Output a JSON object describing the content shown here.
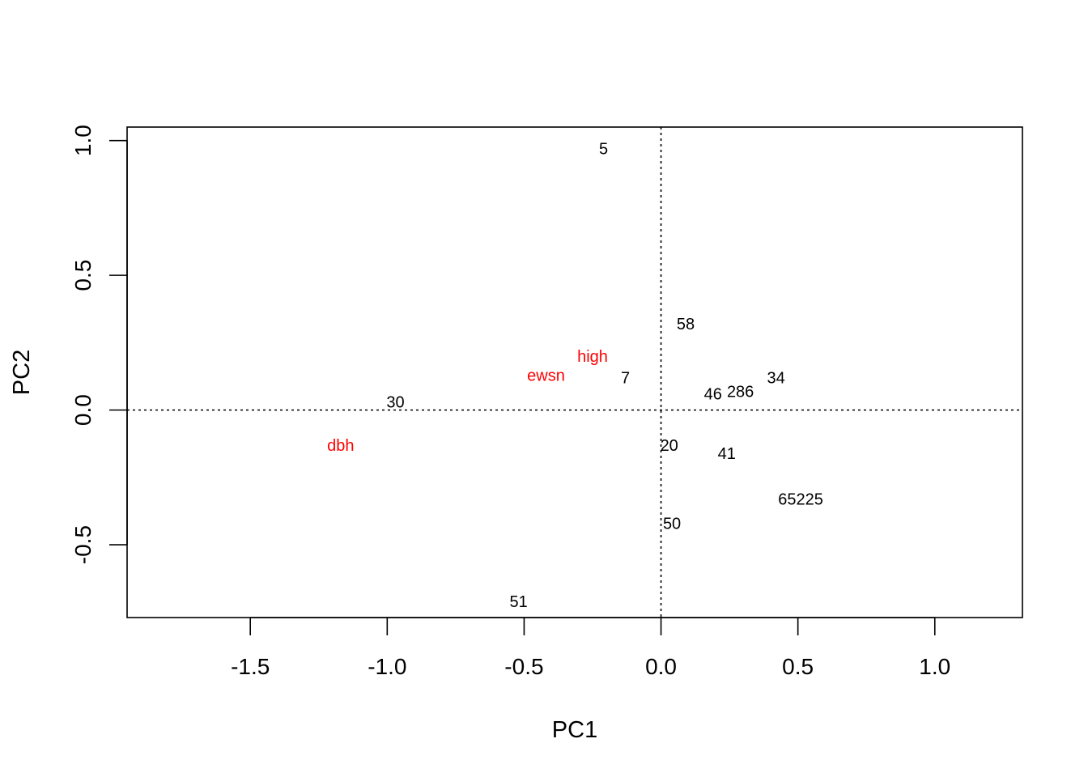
{
  "chart_data": {
    "type": "scatter",
    "title": "",
    "xlabel": "PC1",
    "ylabel": "PC2",
    "xlim": [
      -1.95,
      1.32
    ],
    "ylim": [
      -0.77,
      1.05
    ],
    "x_ticks": [
      -1.5,
      -1.0,
      -0.5,
      0.0,
      0.5,
      1.0
    ],
    "x_tick_labels": [
      "-1.5",
      "-1.0",
      "-0.5",
      "0.0",
      "0.5",
      "1.0"
    ],
    "y_ticks": [
      -0.5,
      0.0,
      0.5,
      1.0
    ],
    "y_tick_labels": [
      "-0.5",
      "0.0",
      "0.5",
      "1.0"
    ],
    "reference_lines": {
      "x": 0.0,
      "y": 0.0,
      "style": "dotted"
    },
    "grid": false,
    "colors": {
      "observations": "#000000",
      "variables": "#ff0000"
    },
    "points": [
      {
        "label": "5",
        "x": -0.21,
        "y": 0.97,
        "group": "observations"
      },
      {
        "label": "58",
        "x": 0.09,
        "y": 0.32,
        "group": "observations"
      },
      {
        "label": "7",
        "x": -0.13,
        "y": 0.12,
        "group": "observations"
      },
      {
        "label": "46",
        "x": 0.19,
        "y": 0.06,
        "group": "observations"
      },
      {
        "label": "286",
        "x": 0.29,
        "y": 0.07,
        "group": "observations"
      },
      {
        "label": "34",
        "x": 0.42,
        "y": 0.12,
        "group": "observations"
      },
      {
        "label": "30",
        "x": -0.97,
        "y": 0.03,
        "group": "observations"
      },
      {
        "label": "20",
        "x": 0.03,
        "y": -0.13,
        "group": "observations"
      },
      {
        "label": "41",
        "x": 0.24,
        "y": -0.16,
        "group": "observations"
      },
      {
        "label": "65225",
        "x": 0.51,
        "y": -0.33,
        "group": "observations"
      },
      {
        "label": "50",
        "x": 0.04,
        "y": -0.42,
        "group": "observations"
      },
      {
        "label": "51",
        "x": -0.52,
        "y": -0.71,
        "group": "observations"
      },
      {
        "label": "high",
        "x": -0.25,
        "y": 0.2,
        "group": "variables"
      },
      {
        "label": "ewsn",
        "x": -0.42,
        "y": 0.13,
        "group": "variables"
      },
      {
        "label": "dbh",
        "x": -1.17,
        "y": -0.13,
        "group": "variables"
      }
    ]
  }
}
